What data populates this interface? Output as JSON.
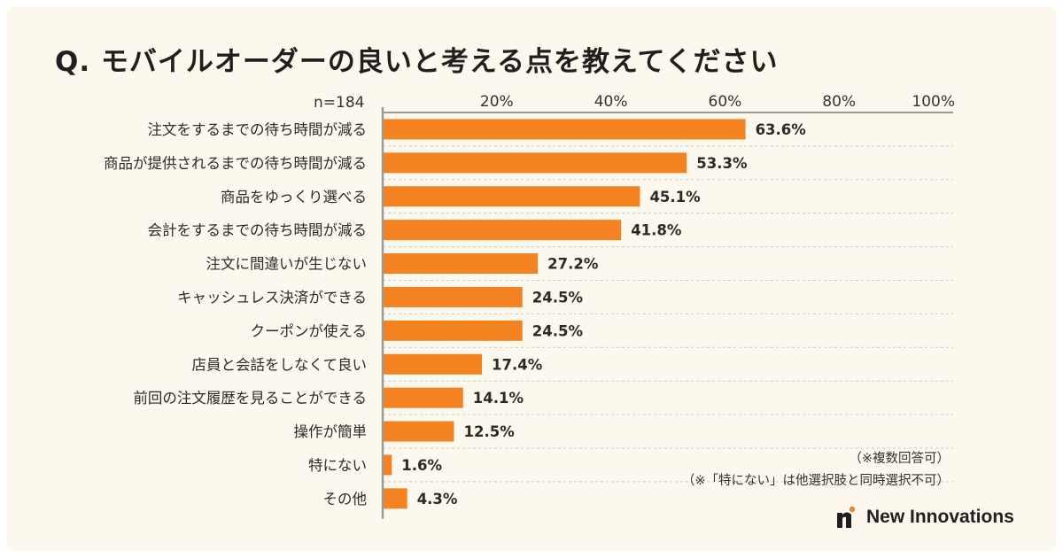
{
  "title": "Q. モバイルオーダーの良いと考える点を教えてください",
  "sample_size": "n=184",
  "notes": {
    "multiple_answers": "（※複数回答可）",
    "exclusive_option": "（※「特にない」は他選択肢と同時選択不可）"
  },
  "brand": {
    "name": "New Innovations"
  },
  "colors": {
    "bar": "#f58220",
    "background": "#fcf8ee",
    "grid": "#c8c8c8"
  },
  "chart_data": {
    "type": "bar",
    "orientation": "horizontal",
    "xlim": [
      0,
      100
    ],
    "x_ticks": [
      "20%",
      "40%",
      "60%",
      "80%",
      "100%"
    ],
    "x_tick_values": [
      20,
      40,
      60,
      80,
      100
    ],
    "categories": [
      "注文をするまでの待ち時間が減る",
      "商品が提供されるまでの待ち時間が減る",
      "商品をゆっくり選べる",
      "会計をするまでの待ち時間が減る",
      "注文に間違いが生じない",
      "キャッシュレス決済ができる",
      "クーポンが使える",
      "店員と会話をしなくて良い",
      "前回の注文履歴を見ることができる",
      "操作が簡単",
      "特にない",
      "その他"
    ],
    "values": [
      63.6,
      53.3,
      45.1,
      41.8,
      27.2,
      24.5,
      24.5,
      17.4,
      14.1,
      12.5,
      1.6,
      4.3
    ],
    "value_labels": [
      "63.6%",
      "53.3%",
      "45.1%",
      "41.8%",
      "27.2%",
      "24.5%",
      "24.5%",
      "17.4%",
      "14.1%",
      "12.5%",
      "1.6%",
      "4.3%"
    ],
    "grid": true
  }
}
